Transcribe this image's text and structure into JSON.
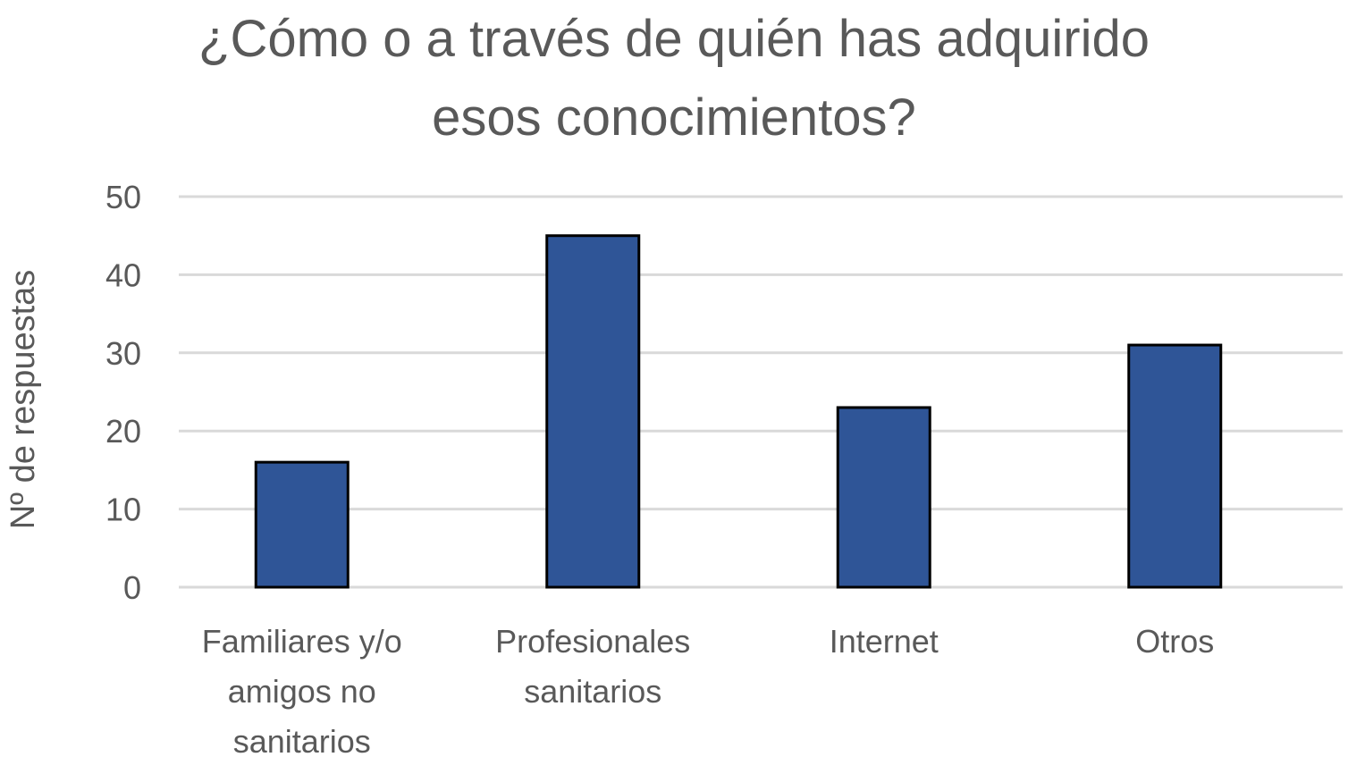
{
  "chart_data": {
    "type": "bar",
    "title_lines": [
      "¿Cómo o a través de quién has adquirido",
      "esos conocimientos?"
    ],
    "categories": [
      [
        "Familiares y/o",
        "amigos no",
        "sanitarios"
      ],
      [
        "Profesionales",
        "sanitarios"
      ],
      [
        "Internet"
      ],
      [
        "Otros"
      ]
    ],
    "values": [
      16,
      45,
      23,
      31
    ],
    "ylabel": "Nº de respuestas",
    "xlabel": "",
    "ylim": [
      0,
      50
    ],
    "yticks": [
      0,
      10,
      20,
      30,
      40,
      50
    ],
    "grid": true,
    "bar_color": "#2F5597",
    "bar_outline": "#000000",
    "grid_color": "#D9D9D9"
  }
}
